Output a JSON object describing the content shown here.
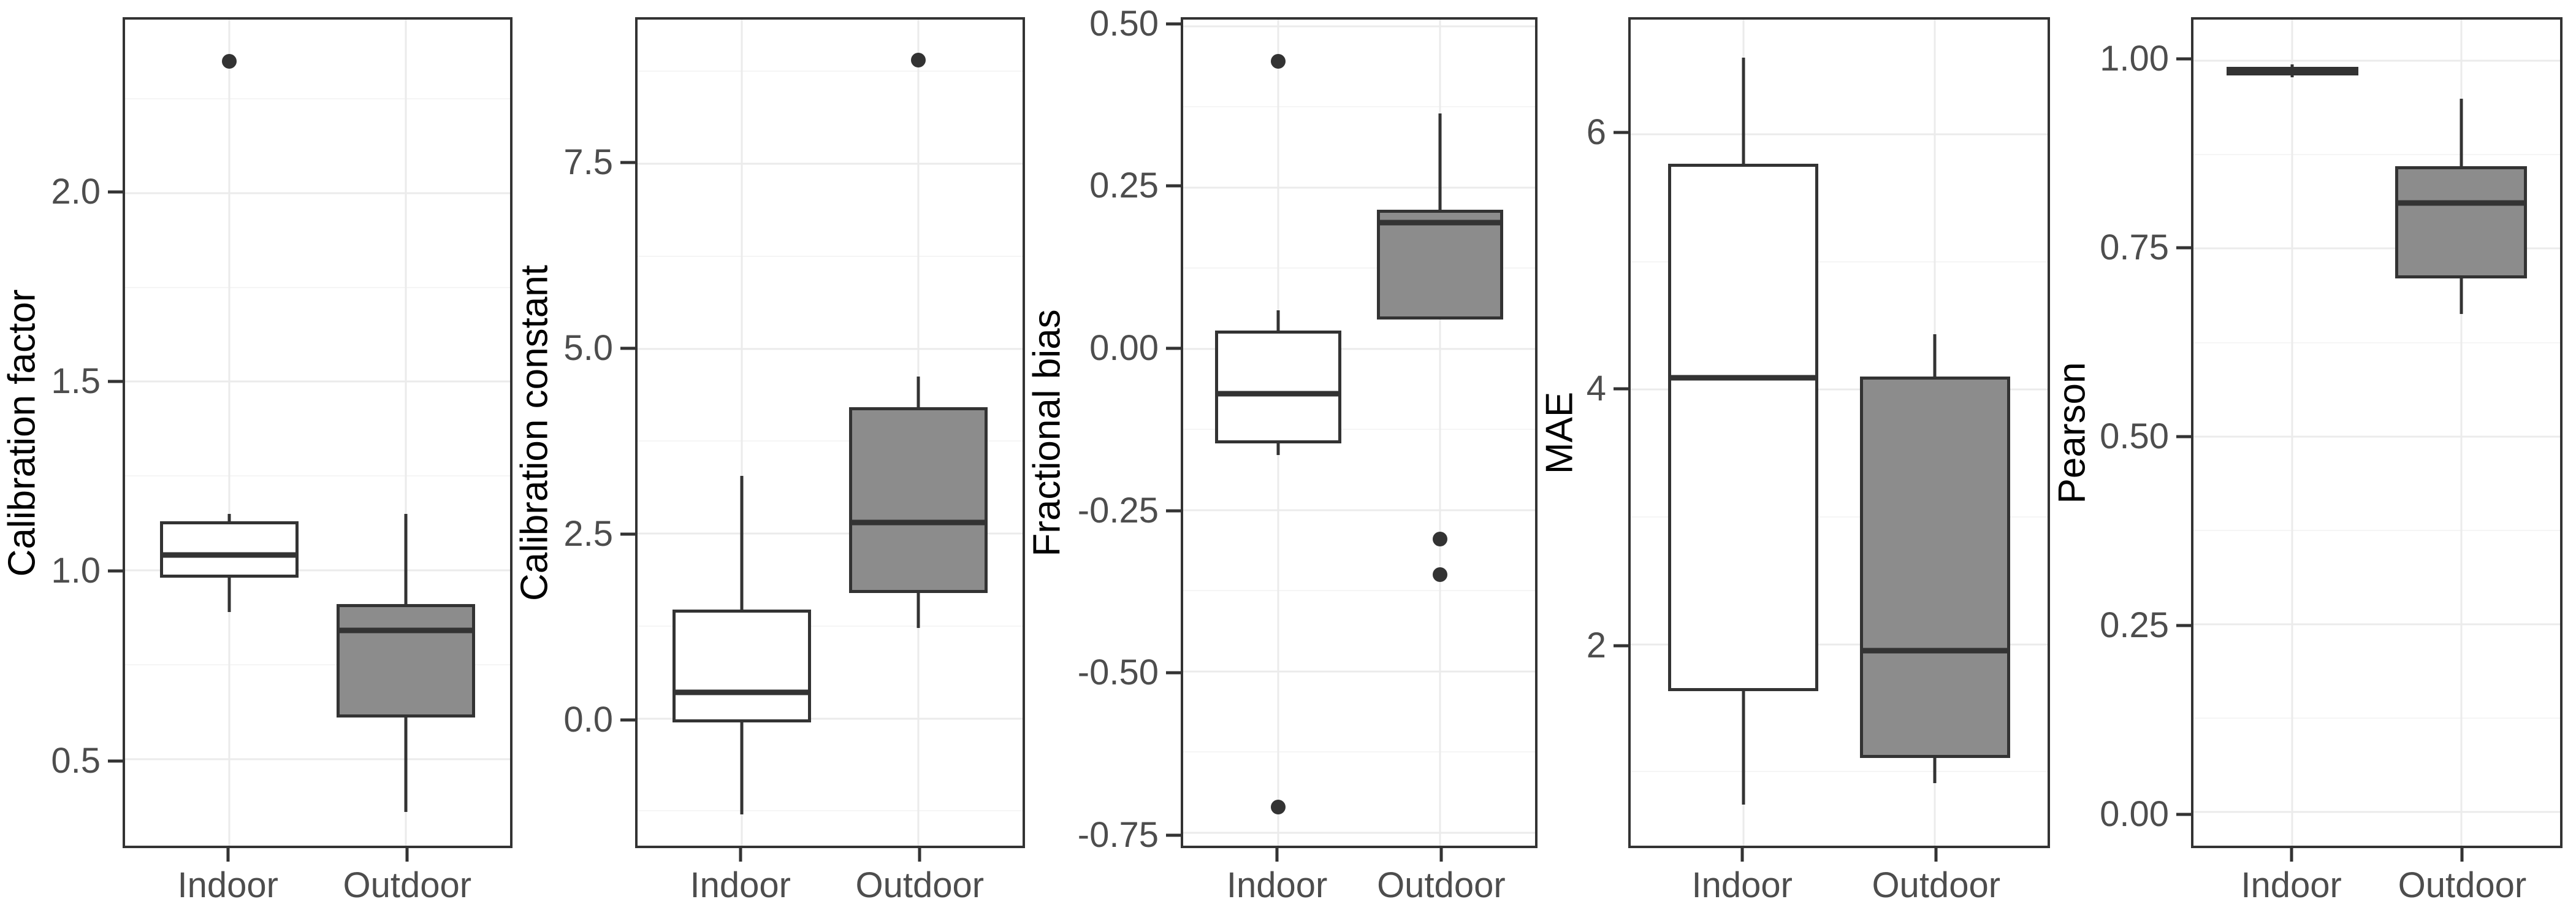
{
  "figure": {
    "colors": {
      "background": "#FFFFFF",
      "panel_border": "#333333",
      "box_stroke": "#333333",
      "indoor_fill": "#FFFFFF",
      "outdoor_fill": "#8C8C8C",
      "grid_major": "#EBEBEB",
      "grid_minor": "#F5F5F5",
      "tick_label_color": "#4D4D4D",
      "axis_title_color": "#000000",
      "outlier_color": "#333333"
    }
  },
  "chart_data": [
    {
      "type": "boxplot",
      "ylabel": "Calibration factor",
      "categories": [
        "Indoor",
        "Outdoor"
      ],
      "ylim": [
        0.27,
        2.46
      ],
      "grid": true,
      "legend": "none",
      "yticks": [
        {
          "v": 0.5,
          "label": "0.5"
        },
        {
          "v": 1.0,
          "label": "1.0"
        },
        {
          "v": 1.5,
          "label": "1.5"
        },
        {
          "v": 2.0,
          "label": "2.0"
        }
      ],
      "yticks_minor": [
        0.75,
        1.25,
        1.75,
        2.25
      ],
      "series": [
        {
          "name": "Indoor",
          "fill": "#FFFFFF",
          "whislo": 0.89,
          "q1": 0.98,
          "med": 1.04,
          "q3": 1.13,
          "whishi": 1.15,
          "outliers": [
            2.35
          ]
        },
        {
          "name": "Outdoor",
          "fill": "#8C8C8C",
          "whislo": 0.36,
          "q1": 0.61,
          "med": 0.84,
          "q3": 0.91,
          "whishi": 1.15,
          "outliers": []
        }
      ]
    },
    {
      "type": "boxplot",
      "ylabel": "Calibration constant",
      "categories": [
        "Indoor",
        "Outdoor"
      ],
      "ylim": [
        -1.72,
        9.45
      ],
      "grid": true,
      "legend": "none",
      "yticks": [
        {
          "v": 0.0,
          "label": "0.0"
        },
        {
          "v": 2.5,
          "label": "2.5"
        },
        {
          "v": 5.0,
          "label": "5.0"
        },
        {
          "v": 7.5,
          "label": "7.5"
        }
      ],
      "yticks_minor": [
        -1.25,
        1.25,
        3.75,
        6.25,
        8.75
      ],
      "series": [
        {
          "name": "Indoor",
          "fill": "#FFFFFF",
          "whislo": -1.3,
          "q1": -0.05,
          "med": 0.35,
          "q3": 1.47,
          "whishi": 3.28,
          "outliers": []
        },
        {
          "name": "Outdoor",
          "fill": "#8C8C8C",
          "whislo": 1.22,
          "q1": 1.7,
          "med": 2.65,
          "q3": 4.21,
          "whishi": 4.62,
          "outliers": [
            8.9
          ]
        }
      ]
    },
    {
      "type": "boxplot",
      "ylabel": "Fractional bias",
      "categories": [
        "Indoor",
        "Outdoor"
      ],
      "ylim": [
        -0.77,
        0.51
      ],
      "grid": true,
      "legend": "none",
      "yticks": [
        {
          "v": -0.75,
          "label": "-0.75"
        },
        {
          "v": -0.5,
          "label": "-0.50"
        },
        {
          "v": -0.25,
          "label": "-0.25"
        },
        {
          "v": 0.0,
          "label": "0.00"
        },
        {
          "v": 0.25,
          "label": "0.25"
        },
        {
          "v": 0.5,
          "label": "0.50"
        }
      ],
      "yticks_minor": [
        -0.625,
        -0.375,
        -0.125,
        0.125,
        0.375
      ],
      "series": [
        {
          "name": "Indoor",
          "fill": "#FFFFFF",
          "whislo": -0.165,
          "q1": -0.147,
          "med": -0.07,
          "q3": 0.028,
          "whishi": 0.06,
          "outliers": [
            0.445,
            -0.71
          ]
        },
        {
          "name": "Outdoor",
          "fill": "#8C8C8C",
          "whislo": 0.045,
          "q1": 0.045,
          "med": 0.195,
          "q3": 0.215,
          "whishi": 0.365,
          "outliers": [
            -0.295,
            -0.35
          ]
        }
      ]
    },
    {
      "type": "boxplot",
      "ylabel": "MAE",
      "categories": [
        "Indoor",
        "Outdoor"
      ],
      "ylim": [
        0.42,
        6.9
      ],
      "grid": true,
      "legend": "none",
      "yticks": [
        {
          "v": 2,
          "label": "2"
        },
        {
          "v": 4,
          "label": "4"
        },
        {
          "v": 6,
          "label": "6"
        }
      ],
      "yticks_minor": [
        1,
        3,
        5
      ],
      "series": [
        {
          "name": "Indoor",
          "fill": "#FFFFFF",
          "whislo": 0.74,
          "q1": 1.63,
          "med": 4.09,
          "q3": 5.77,
          "whishi": 6.6,
          "outliers": []
        },
        {
          "name": "Outdoor",
          "fill": "#8C8C8C",
          "whislo": 0.91,
          "q1": 1.11,
          "med": 1.95,
          "q3": 4.1,
          "whishi": 4.43,
          "outliers": []
        }
      ]
    },
    {
      "type": "boxplot",
      "ylabel": "Pearson",
      "categories": [
        "Indoor",
        "Outdoor"
      ],
      "ylim": [
        -0.045,
        1.055
      ],
      "grid": true,
      "legend": "none",
      "yticks": [
        {
          "v": 0.0,
          "label": "0.00"
        },
        {
          "v": 0.25,
          "label": "0.25"
        },
        {
          "v": 0.5,
          "label": "0.50"
        },
        {
          "v": 0.75,
          "label": "0.75"
        },
        {
          "v": 1.0,
          "label": "1.00"
        }
      ],
      "yticks_minor": [
        0.125,
        0.375,
        0.625,
        0.875
      ],
      "series": [
        {
          "name": "Indoor",
          "fill": "#FFFFFF",
          "whislo": 0.978,
          "q1": 0.981,
          "med": 0.987,
          "q3": 0.992,
          "whishi": 0.995,
          "outliers": []
        },
        {
          "name": "Outdoor",
          "fill": "#8C8C8C",
          "whislo": 0.663,
          "q1": 0.71,
          "med": 0.811,
          "q3": 0.86,
          "whishi": 0.95,
          "outliers": []
        }
      ]
    }
  ]
}
